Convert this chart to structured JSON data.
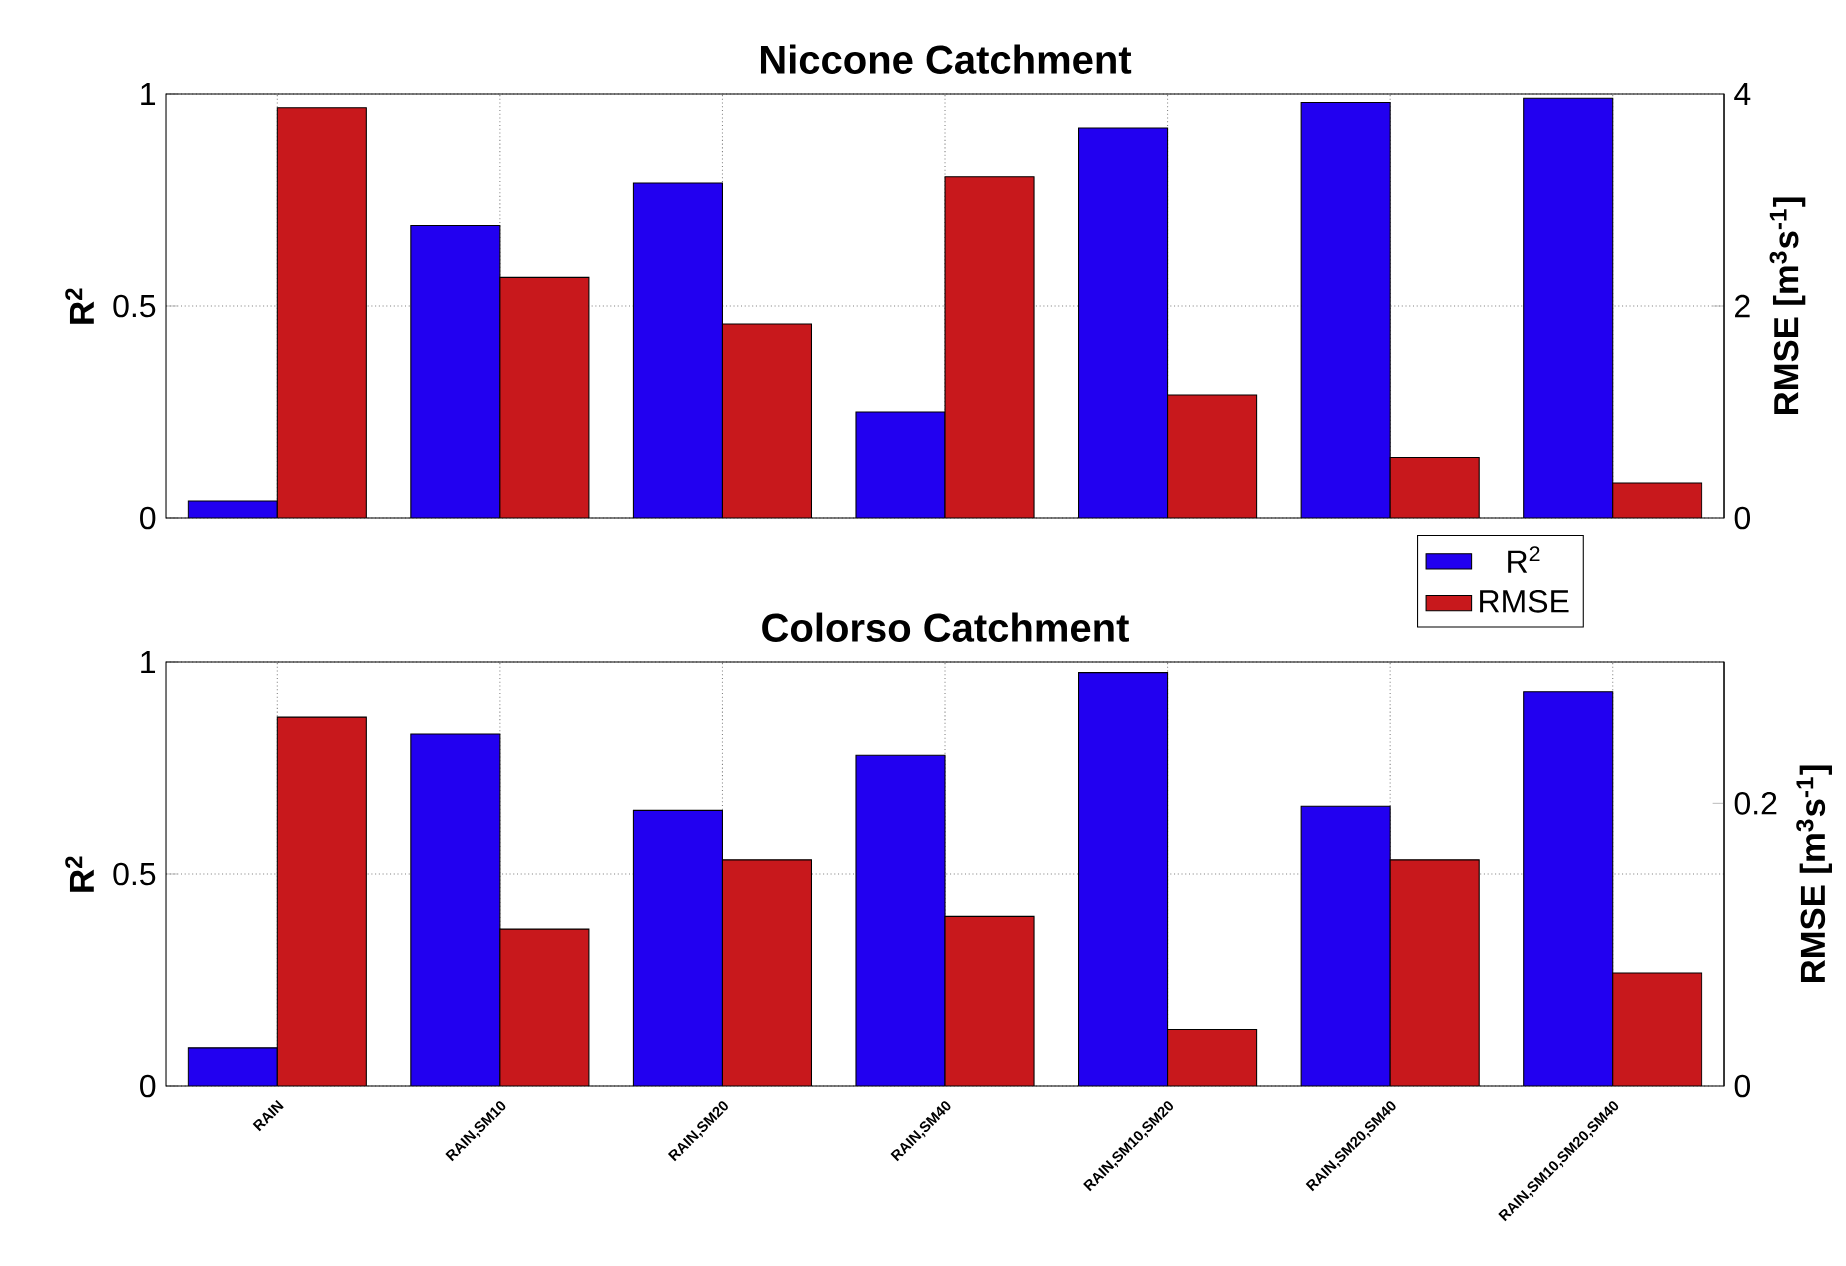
{
  "chart_data": [
    {
      "type": "bar",
      "title": "Niccone Catchment",
      "ylabel": "R$^{2}$",
      "y2label": "RMSE [m$^{3}$s$^{-1}$]",
      "categories": [
        null,
        null,
        null,
        null,
        null,
        null,
        null
      ],
      "series": [
        {
          "name": "R$^{2}$",
          "color": "#2200f0",
          "values": [
            0.04,
            0.69,
            0.79,
            0.25,
            0.92,
            0.98,
            0.99
          ]
        },
        {
          "name": "RMSE",
          "color": "#c8181c",
          "axis": "y2",
          "values": [
            3.87,
            2.27,
            1.83,
            3.22,
            1.16,
            0.57,
            0.33
          ]
        }
      ],
      "ylim": [
        0,
        1
      ],
      "yticks": [
        0,
        0.5,
        1
      ],
      "y2lim": [
        0,
        4
      ],
      "y2ticks": [
        0,
        2,
        4
      ],
      "grid": true,
      "legend": "bottom right"
    },
    {
      "type": "bar",
      "title": "Colorso Catchment",
      "ylabel": "R$^{2}$",
      "y2label": "RMSE [m$^{3}$s$^{-1}$]",
      "categories": [
        "RAIN",
        "RAIN,SM10",
        "RAIN,SM20",
        "RAIN,SM40",
        "RAIN,SM10,SM20",
        "RAIN,SM20,SM40",
        "RAIN,SM10,SM20,SM40"
      ],
      "series": [
        {
          "color": "#2200f0",
          "values": [
            0.09,
            0.83,
            0.65,
            0.78,
            0.975,
            0.66,
            0.93
          ]
        },
        {
          "color": "#c8181c",
          "axis": "y2",
          "values": [
            0.261,
            0.111,
            0.16,
            0.12,
            0.04,
            0.16,
            0.08
          ]
        }
      ],
      "ylim": [
        0,
        1
      ],
      "yticks": [
        0,
        0.5,
        1
      ],
      "y2lim": [
        0,
        0.3
      ],
      "y2ticks": [
        0,
        0.2
      ],
      "grid": true
    }
  ]
}
